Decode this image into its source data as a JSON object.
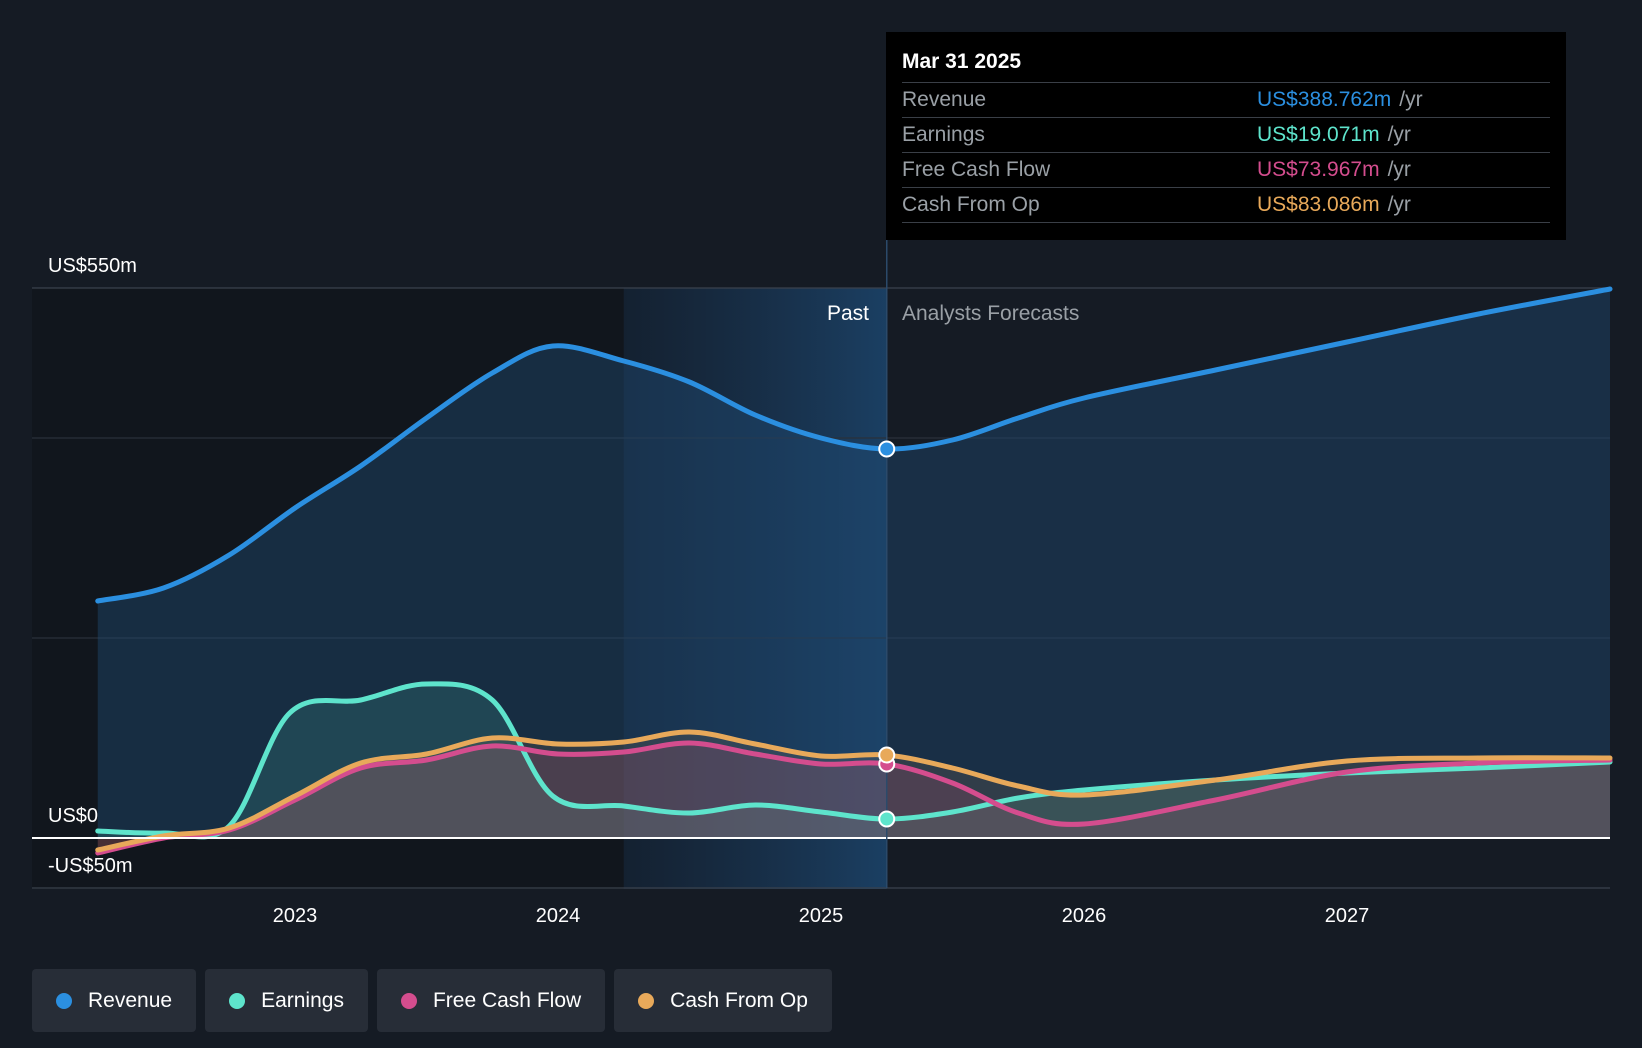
{
  "chart_data": {
    "type": "area",
    "ylabels": {
      "top": "US$550m",
      "zero": "US$0",
      "bottom": "-US$50m"
    },
    "ylim": [
      -50,
      550
    ],
    "gridlines": [
      550,
      400,
      200,
      0,
      -50
    ],
    "xticks": [
      "2023",
      "2024",
      "2025",
      "2026",
      "2027"
    ],
    "past_label": "Past",
    "forecast_label": "Analysts Forecasts",
    "divider_date": 2025.25,
    "highlight_start": 2024.25,
    "series": [
      {
        "name": "Revenue",
        "color": "#2b8fe0",
        "points": [
          [
            2022.25,
            237
          ],
          [
            2022.5,
            250
          ],
          [
            2022.75,
            283
          ],
          [
            2023.0,
            330
          ],
          [
            2023.25,
            372
          ],
          [
            2023.5,
            420
          ],
          [
            2023.75,
            465
          ],
          [
            2023.98,
            492
          ],
          [
            2024.25,
            477
          ],
          [
            2024.5,
            456
          ],
          [
            2024.75,
            423
          ],
          [
            2025.0,
            400
          ],
          [
            2025.25,
            389
          ],
          [
            2025.5,
            398
          ],
          [
            2025.75,
            420
          ],
          [
            2026.0,
            440
          ],
          [
            2026.5,
            468
          ],
          [
            2027.0,
            496
          ],
          [
            2027.5,
            524
          ],
          [
            2028.0,
            549
          ]
        ]
      },
      {
        "name": "Earnings",
        "color": "#5ee4cc",
        "points": [
          [
            2022.25,
            7
          ],
          [
            2022.5,
            5
          ],
          [
            2022.75,
            12
          ],
          [
            2022.98,
            125
          ],
          [
            2023.25,
            138
          ],
          [
            2023.5,
            154
          ],
          [
            2023.75,
            138
          ],
          [
            2023.98,
            42
          ],
          [
            2024.25,
            32
          ],
          [
            2024.5,
            25
          ],
          [
            2024.75,
            33
          ],
          [
            2025.0,
            26
          ],
          [
            2025.25,
            19
          ],
          [
            2025.5,
            26
          ],
          [
            2025.75,
            40
          ],
          [
            2026.0,
            48
          ],
          [
            2026.5,
            58
          ],
          [
            2027.0,
            65
          ],
          [
            2027.5,
            70
          ],
          [
            2028.0,
            76
          ]
        ]
      },
      {
        "name": "Free Cash Flow",
        "color": "#d44d8e",
        "points": [
          [
            2022.25,
            -15
          ],
          [
            2022.5,
            0
          ],
          [
            2022.75,
            8
          ],
          [
            2023.0,
            38
          ],
          [
            2023.25,
            70
          ],
          [
            2023.5,
            78
          ],
          [
            2023.75,
            92
          ],
          [
            2024.0,
            84
          ],
          [
            2024.25,
            86
          ],
          [
            2024.5,
            95
          ],
          [
            2024.75,
            84
          ],
          [
            2025.0,
            74
          ],
          [
            2025.25,
            74
          ],
          [
            2025.5,
            55
          ],
          [
            2025.75,
            25
          ],
          [
            2026.0,
            14
          ],
          [
            2026.5,
            38
          ],
          [
            2027.0,
            66
          ],
          [
            2027.5,
            75
          ],
          [
            2028.0,
            78
          ]
        ]
      },
      {
        "name": "Cash From Op",
        "color": "#e8a95a",
        "points": [
          [
            2022.25,
            -12
          ],
          [
            2022.5,
            2
          ],
          [
            2022.75,
            10
          ],
          [
            2023.0,
            42
          ],
          [
            2023.25,
            75
          ],
          [
            2023.5,
            84
          ],
          [
            2023.75,
            100
          ],
          [
            2024.0,
            94
          ],
          [
            2024.25,
            96
          ],
          [
            2024.5,
            106
          ],
          [
            2024.75,
            94
          ],
          [
            2025.0,
            82
          ],
          [
            2025.25,
            83
          ],
          [
            2025.5,
            70
          ],
          [
            2025.75,
            52
          ],
          [
            2026.0,
            43
          ],
          [
            2026.5,
            58
          ],
          [
            2027.0,
            77
          ],
          [
            2027.5,
            80
          ],
          [
            2028.0,
            80
          ]
        ]
      }
    ],
    "tooltip": {
      "date": "Mar 31 2025",
      "rows": [
        {
          "label": "Revenue",
          "value": "US$388.762m",
          "unit": "/yr",
          "color": "#2b8fe0"
        },
        {
          "label": "Earnings",
          "value": "US$19.071m",
          "unit": "/yr",
          "color": "#5ee4cc"
        },
        {
          "label": "Free Cash Flow",
          "value": "US$73.967m",
          "unit": "/yr",
          "color": "#d44d8e"
        },
        {
          "label": "Cash From Op",
          "value": "US$83.086m",
          "unit": "/yr",
          "color": "#e8a95a"
        }
      ]
    },
    "legend": [
      {
        "label": "Revenue",
        "color": "#2b8fe0"
      },
      {
        "label": "Earnings",
        "color": "#5ee4cc"
      },
      {
        "label": "Free Cash Flow",
        "color": "#d44d8e"
      },
      {
        "label": "Cash From Op",
        "color": "#e8a95a"
      }
    ]
  }
}
